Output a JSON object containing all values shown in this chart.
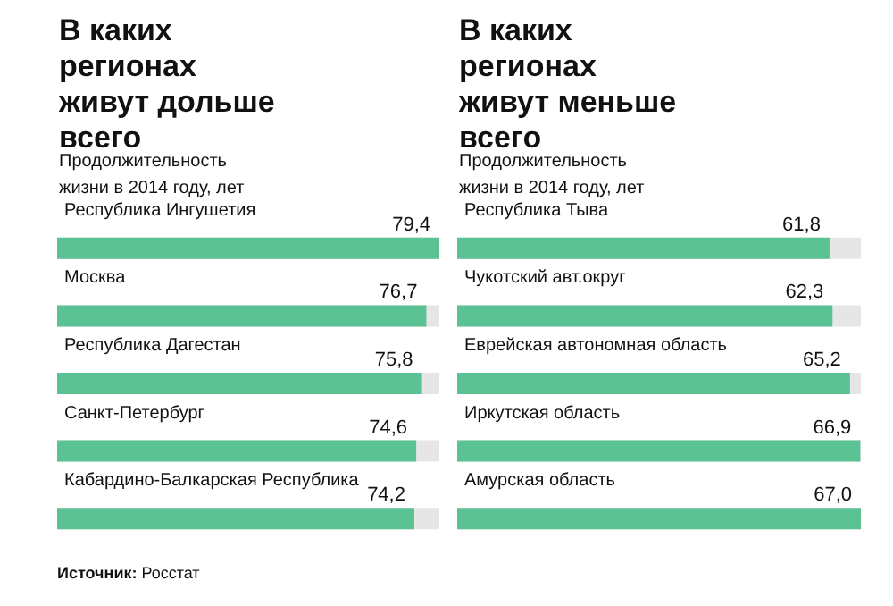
{
  "chart_data": [
    {
      "type": "bar",
      "orientation": "horizontal",
      "title": "В каких регионах живут дольше всего",
      "subtitle": "Продолжительность жизни в 2014 году, лет",
      "categories": [
        "Республика Ингушетия",
        "Москва",
        "Республика Дагестан",
        "Санкт-Петербург",
        "Кабардино-Балкарская Республика"
      ],
      "values": [
        79.4,
        76.7,
        75.8,
        74.6,
        74.2
      ],
      "color": "#5bc294",
      "value_labels": [
        "79,4",
        "76,7",
        "75,8",
        "74,6",
        "74,2"
      ],
      "annotations": [
        "Источник: Росстат"
      ]
    },
    {
      "type": "bar",
      "orientation": "horizontal",
      "title": "В каких регионах живут меньше всего",
      "subtitle": "Продолжительность жизни в 2014 году, лет",
      "categories": [
        "Республика Тыва",
        "Чукотский авт.округ",
        "Еврейская автономная область",
        "Иркутская область",
        "Амурская область"
      ],
      "values": [
        61.8,
        62.3,
        65.2,
        66.9,
        67.0
      ],
      "color": "#5bc294",
      "value_labels": [
        "61,8",
        "62,3",
        "65,2",
        "66,9",
        "67,0"
      ]
    }
  ]
}
